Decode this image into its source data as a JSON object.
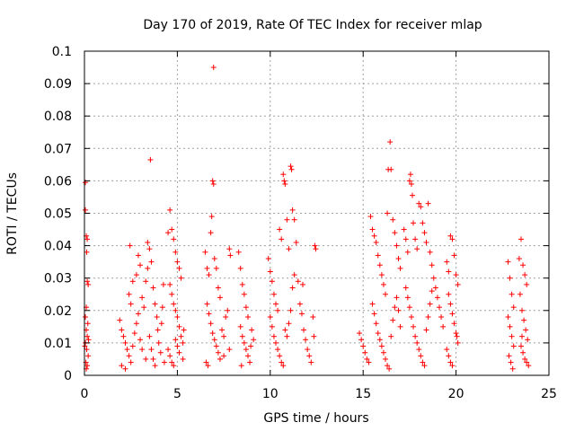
{
  "chart_data": {
    "type": "scatter",
    "title": "Day 170 of 2019, Rate Of TEC Index for receiver mlap",
    "xlabel": "GPS time / hours",
    "ylabel": "ROTI / TECUs",
    "xlim": [
      0,
      25
    ],
    "ylim": [
      0,
      0.1
    ],
    "xticks": [
      0,
      5,
      10,
      15,
      20,
      25
    ],
    "xtick_labels": [
      "0",
      "5",
      "10",
      "15",
      "20",
      "25"
    ],
    "yticks": [
      0,
      0.01,
      0.02,
      0.03,
      0.04,
      0.05,
      0.06,
      0.07,
      0.08,
      0.09,
      0.1
    ],
    "ytick_labels": [
      "0",
      "0.01",
      "0.02",
      "0.03",
      "0.04",
      "0.05",
      "0.06",
      "0.07",
      "0.08",
      "0.09",
      "0.1"
    ],
    "grid": true,
    "marker": "plus",
    "color": "#ff0000",
    "series": [
      {
        "name": "ROTI",
        "points": [
          [
            0.05,
            0.0595
          ],
          [
            0.05,
            0.051
          ],
          [
            0.1,
            0.043
          ],
          [
            0.15,
            0.042
          ],
          [
            0.12,
            0.038
          ],
          [
            0.15,
            0.029
          ],
          [
            0.2,
            0.028
          ],
          [
            0.1,
            0.021
          ],
          [
            0.05,
            0.018
          ],
          [
            0.1,
            0.014
          ],
          [
            0.15,
            0.012
          ],
          [
            0.05,
            0.01
          ],
          [
            0.12,
            0.008
          ],
          [
            0.2,
            0.006
          ],
          [
            0.08,
            0.004
          ],
          [
            0.15,
            0.003
          ],
          [
            0.1,
            0.002
          ],
          [
            0.02,
            0.009
          ],
          [
            0.22,
            0.011
          ],
          [
            0.18,
            0.016
          ],
          [
            1.9,
            0.017
          ],
          [
            2.0,
            0.014
          ],
          [
            2.1,
            0.012
          ],
          [
            2.2,
            0.01
          ],
          [
            2.3,
            0.008
          ],
          [
            2.4,
            0.006
          ],
          [
            2.5,
            0.004
          ],
          [
            2.0,
            0.003
          ],
          [
            2.2,
            0.002
          ],
          [
            2.6,
            0.009
          ],
          [
            2.7,
            0.013
          ],
          [
            2.8,
            0.016
          ],
          [
            2.9,
            0.019
          ],
          [
            2.5,
            0.022
          ],
          [
            2.4,
            0.025
          ],
          [
            2.45,
            0.04
          ],
          [
            2.6,
            0.029
          ],
          [
            2.8,
            0.031
          ],
          [
            2.9,
            0.037
          ],
          [
            3.0,
            0.034
          ],
          [
            3.1,
            0.024
          ],
          [
            3.2,
            0.021
          ],
          [
            3.0,
            0.011
          ],
          [
            3.1,
            0.008
          ],
          [
            3.3,
            0.005
          ],
          [
            3.4,
            0.041
          ],
          [
            3.5,
            0.039
          ],
          [
            3.6,
            0.035
          ],
          [
            3.7,
            0.027
          ],
          [
            3.8,
            0.022
          ],
          [
            3.9,
            0.018
          ],
          [
            3.55,
            0.0665
          ],
          [
            3.3,
            0.029
          ],
          [
            3.4,
            0.033
          ],
          [
            3.5,
            0.012
          ],
          [
            3.6,
            0.008
          ],
          [
            3.7,
            0.005
          ],
          [
            3.8,
            0.003
          ],
          [
            3.95,
            0.014
          ],
          [
            4.0,
            0.01
          ],
          [
            4.1,
            0.007
          ],
          [
            4.2,
            0.021
          ],
          [
            4.25,
            0.028
          ],
          [
            4.3,
            0.004
          ],
          [
            4.15,
            0.016
          ],
          [
            4.5,
            0.044
          ],
          [
            4.6,
            0.051
          ],
          [
            4.7,
            0.045
          ],
          [
            4.8,
            0.042
          ],
          [
            4.9,
            0.038
          ],
          [
            5.0,
            0.035
          ],
          [
            5.1,
            0.033
          ],
          [
            5.2,
            0.03
          ],
          [
            4.6,
            0.028
          ],
          [
            4.7,
            0.025
          ],
          [
            4.8,
            0.022
          ],
          [
            4.9,
            0.02
          ],
          [
            5.0,
            0.018
          ],
          [
            5.1,
            0.015
          ],
          [
            5.2,
            0.012
          ],
          [
            5.3,
            0.01
          ],
          [
            4.5,
            0.008
          ],
          [
            4.6,
            0.006
          ],
          [
            4.7,
            0.004
          ],
          [
            4.8,
            0.003
          ],
          [
            4.9,
            0.011
          ],
          [
            5.0,
            0.009
          ],
          [
            5.1,
            0.007
          ],
          [
            5.3,
            0.005
          ],
          [
            5.35,
            0.014
          ],
          [
            6.5,
            0.038
          ],
          [
            6.6,
            0.033
          ],
          [
            6.7,
            0.031
          ],
          [
            6.8,
            0.044
          ],
          [
            6.85,
            0.049
          ],
          [
            6.95,
            0.095
          ],
          [
            6.9,
            0.06
          ],
          [
            6.95,
            0.059
          ],
          [
            7.0,
            0.036
          ],
          [
            7.1,
            0.033
          ],
          [
            7.2,
            0.027
          ],
          [
            7.3,
            0.024
          ],
          [
            6.6,
            0.022
          ],
          [
            6.7,
            0.019
          ],
          [
            6.8,
            0.016
          ],
          [
            6.9,
            0.013
          ],
          [
            7.0,
            0.011
          ],
          [
            7.1,
            0.009
          ],
          [
            7.2,
            0.007
          ],
          [
            7.3,
            0.005
          ],
          [
            6.55,
            0.004
          ],
          [
            6.65,
            0.003
          ],
          [
            7.4,
            0.014
          ],
          [
            7.5,
            0.012
          ],
          [
            7.6,
            0.018
          ],
          [
            7.7,
            0.02
          ],
          [
            7.8,
            0.008
          ],
          [
            7.85,
            0.037
          ],
          [
            7.8,
            0.039
          ],
          [
            7.5,
            0.006
          ],
          [
            8.3,
            0.038
          ],
          [
            8.4,
            0.033
          ],
          [
            8.5,
            0.028
          ],
          [
            8.6,
            0.025
          ],
          [
            8.7,
            0.021
          ],
          [
            8.8,
            0.018
          ],
          [
            8.4,
            0.015
          ],
          [
            8.5,
            0.012
          ],
          [
            8.6,
            0.01
          ],
          [
            8.7,
            0.008
          ],
          [
            8.8,
            0.006
          ],
          [
            8.9,
            0.004
          ],
          [
            9.0,
            0.014
          ],
          [
            9.1,
            0.011
          ],
          [
            8.45,
            0.003
          ],
          [
            8.95,
            0.009
          ],
          [
            9.9,
            0.036
          ],
          [
            10.0,
            0.032
          ],
          [
            10.1,
            0.029
          ],
          [
            10.2,
            0.025
          ],
          [
            10.3,
            0.022
          ],
          [
            10.4,
            0.02
          ],
          [
            10.5,
            0.045
          ],
          [
            10.6,
            0.042
          ],
          [
            10.7,
            0.062
          ],
          [
            10.75,
            0.06
          ],
          [
            10.8,
            0.059
          ],
          [
            10.9,
            0.048
          ],
          [
            11.0,
            0.039
          ],
          [
            11.1,
            0.0645
          ],
          [
            11.15,
            0.0635
          ],
          [
            11.2,
            0.051
          ],
          [
            11.3,
            0.048
          ],
          [
            11.4,
            0.041
          ],
          [
            10.0,
            0.018
          ],
          [
            10.1,
            0.015
          ],
          [
            10.2,
            0.012
          ],
          [
            10.3,
            0.01
          ],
          [
            10.4,
            0.008
          ],
          [
            10.5,
            0.006
          ],
          [
            10.6,
            0.004
          ],
          [
            10.7,
            0.003
          ],
          [
            10.8,
            0.014
          ],
          [
            10.9,
            0.012
          ],
          [
            11.0,
            0.016
          ],
          [
            11.1,
            0.02
          ],
          [
            11.2,
            0.027
          ],
          [
            11.3,
            0.031
          ],
          [
            11.5,
            0.029
          ],
          [
            11.6,
            0.022
          ],
          [
            11.7,
            0.019
          ],
          [
            11.8,
            0.014
          ],
          [
            11.9,
            0.011
          ],
          [
            12.0,
            0.008
          ],
          [
            12.1,
            0.006
          ],
          [
            12.2,
            0.004
          ],
          [
            12.3,
            0.018
          ],
          [
            12.4,
            0.04
          ],
          [
            12.45,
            0.039
          ],
          [
            12.35,
            0.012
          ],
          [
            11.75,
            0.028
          ],
          [
            14.8,
            0.013
          ],
          [
            14.9,
            0.011
          ],
          [
            15.0,
            0.009
          ],
          [
            15.1,
            0.007
          ],
          [
            15.2,
            0.005
          ],
          [
            15.3,
            0.004
          ],
          [
            15.4,
            0.049
          ],
          [
            15.5,
            0.045
          ],
          [
            15.6,
            0.043
          ],
          [
            15.7,
            0.041
          ],
          [
            15.8,
            0.037
          ],
          [
            15.9,
            0.034
          ],
          [
            16.0,
            0.031
          ],
          [
            16.1,
            0.028
          ],
          [
            16.2,
            0.025
          ],
          [
            16.3,
            0.05
          ],
          [
            16.35,
            0.0635
          ],
          [
            16.45,
            0.072
          ],
          [
            16.5,
            0.0635
          ],
          [
            16.6,
            0.048
          ],
          [
            16.7,
            0.044
          ],
          [
            16.8,
            0.04
          ],
          [
            16.9,
            0.036
          ],
          [
            17.0,
            0.033
          ],
          [
            15.5,
            0.022
          ],
          [
            15.6,
            0.019
          ],
          [
            15.7,
            0.016
          ],
          [
            15.8,
            0.013
          ],
          [
            15.9,
            0.011
          ],
          [
            16.0,
            0.009
          ],
          [
            16.1,
            0.007
          ],
          [
            16.2,
            0.005
          ],
          [
            16.3,
            0.003
          ],
          [
            16.4,
            0.002
          ],
          [
            16.5,
            0.012
          ],
          [
            16.6,
            0.017
          ],
          [
            16.7,
            0.021
          ],
          [
            16.8,
            0.024
          ],
          [
            16.9,
            0.02
          ],
          [
            17.0,
            0.015
          ],
          [
            17.2,
            0.045
          ],
          [
            17.3,
            0.042
          ],
          [
            17.4,
            0.038
          ],
          [
            17.5,
            0.06
          ],
          [
            17.55,
            0.062
          ],
          [
            17.6,
            0.059
          ],
          [
            17.65,
            0.0555
          ],
          [
            17.7,
            0.047
          ],
          [
            17.8,
            0.042
          ],
          [
            17.9,
            0.039
          ],
          [
            18.0,
            0.053
          ],
          [
            18.1,
            0.052
          ],
          [
            18.2,
            0.047
          ],
          [
            18.3,
            0.044
          ],
          [
            18.4,
            0.041
          ],
          [
            18.5,
            0.053
          ],
          [
            18.6,
            0.038
          ],
          [
            18.7,
            0.034
          ],
          [
            17.3,
            0.027
          ],
          [
            17.4,
            0.024
          ],
          [
            17.5,
            0.021
          ],
          [
            17.6,
            0.018
          ],
          [
            17.7,
            0.015
          ],
          [
            17.8,
            0.012
          ],
          [
            17.9,
            0.01
          ],
          [
            18.0,
            0.008
          ],
          [
            18.1,
            0.006
          ],
          [
            18.2,
            0.004
          ],
          [
            18.3,
            0.003
          ],
          [
            18.4,
            0.014
          ],
          [
            18.5,
            0.018
          ],
          [
            18.6,
            0.022
          ],
          [
            18.7,
            0.026
          ],
          [
            18.8,
            0.03
          ],
          [
            18.9,
            0.027
          ],
          [
            19.0,
            0.024
          ],
          [
            19.1,
            0.021
          ],
          [
            19.2,
            0.018
          ],
          [
            19.3,
            0.015
          ],
          [
            19.5,
            0.035
          ],
          [
            19.6,
            0.032
          ],
          [
            19.7,
            0.043
          ],
          [
            19.8,
            0.042
          ],
          [
            19.9,
            0.037
          ],
          [
            20.0,
            0.031
          ],
          [
            20.1,
            0.028
          ],
          [
            19.6,
            0.025
          ],
          [
            19.7,
            0.022
          ],
          [
            19.8,
            0.019
          ],
          [
            19.9,
            0.016
          ],
          [
            20.0,
            0.013
          ],
          [
            20.1,
            0.01
          ],
          [
            19.5,
            0.008
          ],
          [
            19.6,
            0.006
          ],
          [
            19.7,
            0.004
          ],
          [
            19.8,
            0.003
          ],
          [
            20.05,
            0.012
          ],
          [
            22.8,
            0.035
          ],
          [
            22.9,
            0.03
          ],
          [
            23.0,
            0.025
          ],
          [
            23.1,
            0.021
          ],
          [
            22.8,
            0.018
          ],
          [
            22.9,
            0.015
          ],
          [
            23.0,
            0.012
          ],
          [
            23.1,
            0.009
          ],
          [
            22.85,
            0.006
          ],
          [
            22.95,
            0.004
          ],
          [
            23.05,
            0.002
          ],
          [
            23.4,
            0.036
          ],
          [
            23.5,
            0.042
          ],
          [
            23.6,
            0.034
          ],
          [
            23.7,
            0.031
          ],
          [
            23.8,
            0.028
          ],
          [
            23.45,
            0.025
          ],
          [
            23.55,
            0.02
          ],
          [
            23.65,
            0.017
          ],
          [
            23.75,
            0.014
          ],
          [
            23.85,
            0.011
          ],
          [
            23.5,
            0.009
          ],
          [
            23.6,
            0.007
          ],
          [
            23.7,
            0.005
          ],
          [
            23.8,
            0.004
          ],
          [
            23.9,
            0.003
          ],
          [
            23.55,
            0.012
          ]
        ]
      }
    ]
  }
}
